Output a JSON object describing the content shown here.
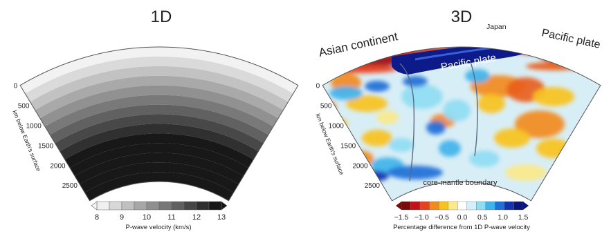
{
  "left_panel": {
    "title": "1D",
    "depth_ticks": [
      "0",
      "500",
      "1000",
      "1500",
      "2000",
      "2500"
    ],
    "axis_label": "km below Earth's surface",
    "colorbar": {
      "ticks": [
        "8",
        "9",
        "10",
        "11",
        "12",
        "13"
      ],
      "label": "P-wave velocity (km/s)",
      "range": [
        8,
        13
      ],
      "low_color": "#f4f4f4",
      "high_color": "#161616"
    }
  },
  "right_panel": {
    "title": "3D",
    "annotations": {
      "asian_continent": "Asian continent",
      "japan": "Japan",
      "pacific_plate_top": "Pacific plate",
      "pacific_plate_slab": "Pacific plate",
      "core_mantle_boundary": "core-mantle boundary"
    },
    "depth_ticks": [
      "0",
      "500",
      "1000",
      "1500",
      "2000",
      "2500"
    ],
    "axis_label": "km below Earth's surface",
    "colorbar": {
      "ticks": [
        "−1.5",
        "−1.0",
        "−0.5",
        "0.0",
        "0.5",
        "1.0",
        "1.5"
      ],
      "label": "Percentage difference from 1D P-wave velocity",
      "range": [
        -1.5,
        1.5
      ],
      "colors": [
        "#7a0b0b",
        "#c1121a",
        "#e8401c",
        "#f28a1e",
        "#f8c21f",
        "#fbe98a",
        "#ffffff",
        "#d2f1fb",
        "#8fdcf3",
        "#3fb3ea",
        "#1f6fd8",
        "#1232b0",
        "#0b1477"
      ]
    }
  }
}
